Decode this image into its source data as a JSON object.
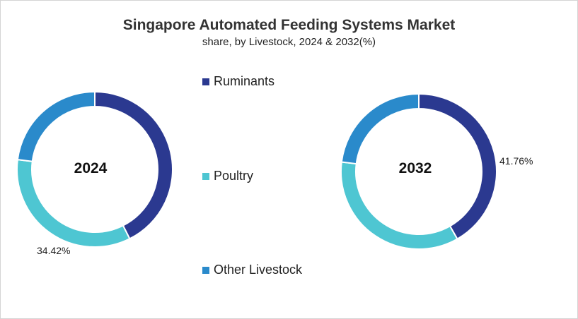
{
  "chart_data": [
    {
      "type": "pie",
      "title": "Singapore Automated Feeding Systems Market",
      "subtitle": "share, by Livestock, 2024 & 2032(%)",
      "center_label": "2024",
      "categories": [
        "Ruminants",
        "Poultry",
        "Other Livestock"
      ],
      "values": [
        42.6,
        34.42,
        22.98
      ],
      "data_labels": [
        {
          "category": "Poultry",
          "text": "34.42%"
        }
      ],
      "donut": true,
      "legend": "center"
    },
    {
      "type": "pie",
      "center_label": "2032",
      "categories": [
        "Ruminants",
        "Poultry",
        "Other Livestock"
      ],
      "values": [
        41.76,
        35.2,
        23.04
      ],
      "data_labels": [
        {
          "category": "Ruminants",
          "text": "41.76%"
        }
      ],
      "donut": true,
      "legend": "center"
    }
  ],
  "legend": {
    "items": [
      {
        "label": "Ruminants",
        "color": "#2b3990"
      },
      {
        "label": "Poultry",
        "color": "#4ec6d2"
      },
      {
        "label": "Other Livestock",
        "color": "#2a8acb"
      }
    ]
  },
  "colors": {
    "Ruminants": "#2b3990",
    "Poultry": "#4ec6d2",
    "Other Livestock": "#2a8acb"
  }
}
